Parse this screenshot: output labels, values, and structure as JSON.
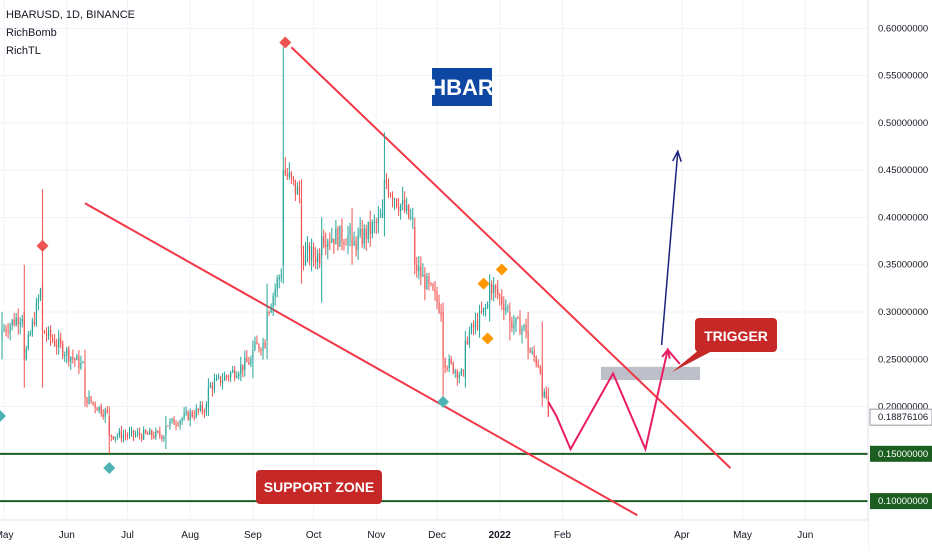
{
  "header": {
    "symbol_line": "HBARUSD, 1D, BINANCE",
    "indicators": [
      "RichBomb",
      "RichTL"
    ]
  },
  "chart_data": {
    "type": "candlestick",
    "title": "HBAR",
    "ylim": [
      0.08,
      0.63
    ],
    "y_ticks": [
      "0.60000000",
      "0.55000000",
      "0.50000000",
      "0.45000000",
      "0.40000000",
      "0.35000000",
      "0.30000000",
      "0.25000000",
      "0.20000000",
      "0.15000000",
      "0.10000000"
    ],
    "y_tick_values": [
      0.6,
      0.55,
      0.5,
      0.45,
      0.4,
      0.35,
      0.3,
      0.25,
      0.2,
      0.15,
      0.1
    ],
    "x_ticks": [
      "May",
      "Jun",
      "Jul",
      "Aug",
      "Sep",
      "Oct",
      "Nov",
      "Dec",
      "2022",
      "Feb",
      "Apr",
      "May",
      "Jun"
    ],
    "x_tick_dates": [
      "2021-05-01",
      "2021-06-01",
      "2021-07-01",
      "2021-08-01",
      "2021-09-01",
      "2021-10-01",
      "2021-11-01",
      "2021-12-01",
      "2022-01-01",
      "2022-02-01",
      "2022-04-01",
      "2022-05-01",
      "2022-06-01"
    ],
    "x_range": [
      "2021-04-29",
      "2022-07-02"
    ],
    "last_price_label": "0.18876106",
    "last_price": 0.18876106,
    "support_lines": [
      {
        "label": "0.15000000",
        "value": 0.15
      },
      {
        "label": "0.10000000",
        "value": 0.1
      }
    ],
    "colors": {
      "up": "#26a69a",
      "down": "#ef5350",
      "trendline": "#f23645",
      "support": "#1b5e20",
      "projection": "#e91e63",
      "target_arrow": "#1a237e",
      "title_bg": "#0d47a1",
      "label_bg": "#c62828",
      "trigger_box": "#b2b5be"
    },
    "trendlines": [
      {
        "name": "upper",
        "from": [
          "2021-09-20",
          0.58
        ],
        "to": [
          "2022-04-25",
          0.135
        ]
      },
      {
        "name": "lower",
        "from": [
          "2021-06-10",
          0.415
        ],
        "to": [
          "2022-03-10",
          0.085
        ]
      }
    ],
    "key_points": [
      {
        "date": "2021-04-30",
        "open": 0.27,
        "high": 0.3,
        "low": 0.25,
        "close": 0.28
      },
      {
        "date": "2021-05-11",
        "open": 0.3,
        "high": 0.35,
        "low": 0.22,
        "close": 0.25
      },
      {
        "date": "2021-05-20",
        "open": 0.33,
        "high": 0.43,
        "low": 0.22,
        "close": 0.28
      },
      {
        "date": "2021-06-10",
        "open": 0.24,
        "high": 0.26,
        "low": 0.2,
        "close": 0.21
      },
      {
        "date": "2021-06-22",
        "open": 0.19,
        "high": 0.2,
        "low": 0.15,
        "close": 0.17
      },
      {
        "date": "2021-07-20",
        "open": 0.17,
        "high": 0.19,
        "low": 0.155,
        "close": 0.18
      },
      {
        "date": "2021-08-10",
        "open": 0.2,
        "high": 0.23,
        "low": 0.19,
        "close": 0.22
      },
      {
        "date": "2021-09-01",
        "open": 0.25,
        "high": 0.27,
        "low": 0.23,
        "close": 0.26
      },
      {
        "date": "2021-09-08",
        "open": 0.27,
        "high": 0.33,
        "low": 0.25,
        "close": 0.3
      },
      {
        "date": "2021-09-16",
        "open": 0.35,
        "high": 0.58,
        "low": 0.33,
        "close": 0.45
      },
      {
        "date": "2021-09-25",
        "open": 0.42,
        "high": 0.44,
        "low": 0.33,
        "close": 0.36
      },
      {
        "date": "2021-10-05",
        "open": 0.36,
        "high": 0.4,
        "low": 0.31,
        "close": 0.38
      },
      {
        "date": "2021-10-20",
        "open": 0.38,
        "high": 0.41,
        "low": 0.35,
        "close": 0.37
      },
      {
        "date": "2021-11-05",
        "open": 0.4,
        "high": 0.49,
        "low": 0.38,
        "close": 0.44
      },
      {
        "date": "2021-11-20",
        "open": 0.39,
        "high": 0.4,
        "low": 0.34,
        "close": 0.35
      },
      {
        "date": "2021-12-04",
        "open": 0.3,
        "high": 0.31,
        "low": 0.2,
        "close": 0.25
      },
      {
        "date": "2021-12-15",
        "open": 0.23,
        "high": 0.28,
        "low": 0.22,
        "close": 0.27
      },
      {
        "date": "2021-12-27",
        "open": 0.31,
        "high": 0.34,
        "low": 0.29,
        "close": 0.33
      },
      {
        "date": "2022-01-06",
        "open": 0.3,
        "high": 0.31,
        "low": 0.27,
        "close": 0.29
      },
      {
        "date": "2022-01-15",
        "open": 0.28,
        "high": 0.3,
        "low": 0.25,
        "close": 0.26
      },
      {
        "date": "2022-01-22",
        "open": 0.24,
        "high": 0.29,
        "low": 0.2,
        "close": 0.21
      },
      {
        "date": "2022-01-25",
        "open": 0.21,
        "high": 0.22,
        "low": 0.19,
        "close": 0.189
      }
    ],
    "signal_markers": [
      {
        "date": "2021-05-20",
        "price": 0.37,
        "color": "#ef5350"
      },
      {
        "date": "2021-09-17",
        "price": 0.585,
        "color": "#ef5350"
      },
      {
        "date": "2021-06-22",
        "price": 0.135,
        "color": "#4fb3b3"
      },
      {
        "date": "2021-04-29",
        "price": 0.19,
        "color": "#4fb3b3"
      },
      {
        "date": "2021-12-04",
        "price": 0.205,
        "color": "#4fb3b3"
      },
      {
        "date": "2021-12-24",
        "price": 0.33,
        "color": "#ff9800"
      },
      {
        "date": "2021-12-26",
        "price": 0.272,
        "color": "#ff9800"
      },
      {
        "date": "2022-01-02",
        "price": 0.345,
        "color": "#ff9800"
      }
    ],
    "projection_path": [
      [
        "2022-01-25",
        0.205
      ],
      [
        "2022-01-29",
        0.19
      ],
      [
        "2022-02-05",
        0.155
      ],
      [
        "2022-02-26",
        0.235
      ],
      [
        "2022-03-14",
        0.155
      ],
      [
        "2022-03-25",
        0.26
      ],
      [
        "2022-03-31",
        0.245
      ]
    ],
    "target_arrow": {
      "from": [
        "2022-03-22",
        0.265
      ],
      "to": [
        "2022-03-30",
        0.47
      ]
    },
    "trigger_zone": {
      "from": "2022-02-20",
      "to": "2022-04-10",
      "low": 0.228,
      "high": 0.242
    },
    "annotations": {
      "trigger": "TRIGGER",
      "support": "SUPPORT ZONE"
    }
  }
}
